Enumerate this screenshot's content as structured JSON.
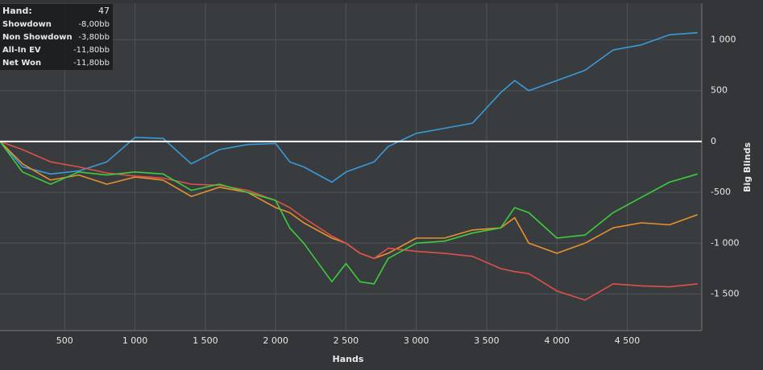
{
  "chart_data": {
    "type": "line",
    "x_label": "Hands",
    "y_label": "Big Blinds",
    "x": [
      40,
      200,
      400,
      600,
      800,
      1000,
      1200,
      1400,
      1600,
      1800,
      2000,
      2100,
      2200,
      2400,
      2500,
      2600,
      2700,
      2800,
      3000,
      3200,
      3400,
      3600,
      3700,
      3800,
      4000,
      4200,
      4400,
      4600,
      4800,
      5000
    ],
    "series": [
      {
        "color": "#3a9ad9",
        "values": [
          0,
          -250,
          -320,
          -290,
          -200,
          40,
          30,
          -220,
          -80,
          -30,
          -20,
          -200,
          -250,
          -400,
          -300,
          -250,
          -200,
          -50,
          80,
          130,
          180,
          480,
          600,
          500,
          600,
          700,
          900,
          950,
          1050,
          1070
        ]
      },
      {
        "color": "#e8902e",
        "values": [
          0,
          -220,
          -380,
          -330,
          -420,
          -350,
          -380,
          -540,
          -450,
          -500,
          -650,
          -700,
          -800,
          -950,
          -1000,
          -1100,
          -1150,
          -1100,
          -950,
          -950,
          -870,
          -850,
          -750,
          -1000,
          -1100,
          -1000,
          -850,
          -800,
          -820,
          -720
        ]
      },
      {
        "color": "#e0504a",
        "values": [
          0,
          -80,
          -200,
          -250,
          -310,
          -340,
          -360,
          -420,
          -430,
          -480,
          -580,
          -650,
          -750,
          -930,
          -1000,
          -1100,
          -1150,
          -1050,
          -1080,
          -1100,
          -1130,
          -1250,
          -1280,
          -1300,
          -1470,
          -1560,
          -1400,
          -1420,
          -1430,
          -1400
        ]
      },
      {
        "color": "#3ccc3c",
        "values": [
          0,
          -300,
          -420,
          -300,
          -330,
          -300,
          -320,
          -480,
          -420,
          -500,
          -580,
          -850,
          -1000,
          -1380,
          -1200,
          -1380,
          -1400,
          -1150,
          -1000,
          -980,
          -900,
          -850,
          -650,
          -700,
          -950,
          -920,
          -700,
          -550,
          -400,
          -320
        ]
      }
    ],
    "xlim": [
      40,
      5030
    ],
    "ylim": [
      -1860,
      1360
    ],
    "xticks": [
      500,
      {
        "value": 1000,
        "label": "1 000"
      },
      {
        "value": 1500,
        "label": "1 500"
      },
      {
        "value": 2000,
        "label": "2 000"
      },
      {
        "value": 2500,
        "label": "2 500"
      },
      {
        "value": 3000,
        "label": "3 000"
      },
      {
        "value": 3500,
        "label": "3 500"
      },
      {
        "value": 4000,
        "label": "4 000"
      },
      {
        "value": 4500,
        "label": "4 500"
      }
    ],
    "yticks": [
      {
        "value": -1500,
        "label": "-1 500"
      },
      {
        "value": -1000,
        "label": "-1 000"
      },
      -500,
      0,
      500,
      {
        "value": 1000,
        "label": "1 000"
      }
    ],
    "grid": true,
    "info_panel": {
      "rows": [
        [
          "Hand:",
          "47"
        ],
        [
          "Showdown",
          "-8,00bb"
        ],
        [
          "Non Showdown",
          "-3,80bb"
        ],
        [
          "All-In EV",
          "-11,80bb"
        ],
        [
          "Net Won",
          "-11,80bb"
        ]
      ]
    }
  }
}
